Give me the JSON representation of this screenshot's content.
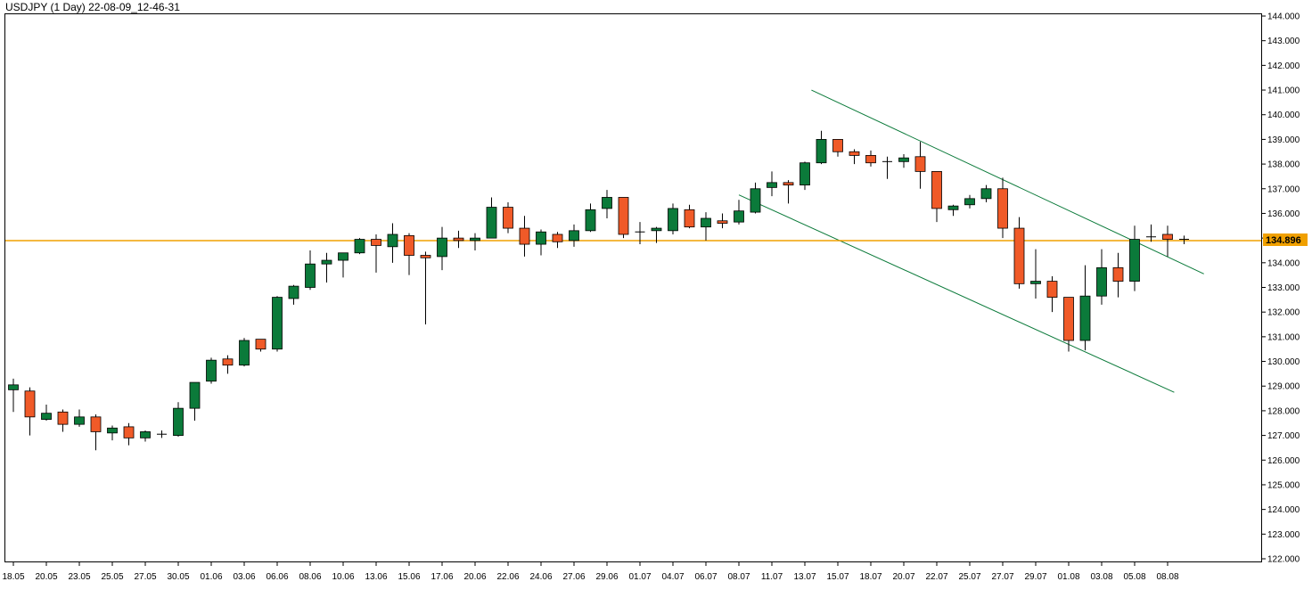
{
  "title": "USDJPY (1 Day) 22-08-09_12-46-31",
  "colors": {
    "up": "#0b7a3a",
    "down": "#f05a28",
    "wick": "#000000",
    "trendline": "#0b7a3a",
    "price_line": "#f0a000",
    "price_label_bg": "#f0a000",
    "frame": "#000000"
  },
  "chart_data": {
    "type": "candlestick",
    "symbol": "USDJPY",
    "timeframe": "1 Day",
    "ylim": [
      122.0,
      144.0
    ],
    "y_ticks": [
      122.0,
      123.0,
      124.0,
      125.0,
      126.0,
      127.0,
      128.0,
      129.0,
      130.0,
      131.0,
      132.0,
      133.0,
      134.0,
      135.0,
      136.0,
      137.0,
      138.0,
      139.0,
      140.0,
      141.0,
      142.0,
      143.0,
      144.0
    ],
    "y_tick_labels": [
      "122.000",
      "123.000",
      "124.000",
      "125.000",
      "126.000",
      "127.000",
      "128.000",
      "129.000",
      "130.000",
      "131.000",
      "132.000",
      "133.000",
      "134.000",
      "135.000",
      "136.000",
      "137.000",
      "138.000",
      "139.000",
      "140.000",
      "141.000",
      "142.000",
      "143.000",
      "144.000"
    ],
    "x_labels": [
      {
        "label": "18.05",
        "index": 0
      },
      {
        "label": "20.05",
        "index": 2
      },
      {
        "label": "23.05",
        "index": 4
      },
      {
        "label": "25.05",
        "index": 6
      },
      {
        "label": "27.05",
        "index": 8
      },
      {
        "label": "30.05",
        "index": 10
      },
      {
        "label": "01.06",
        "index": 12
      },
      {
        "label": "03.06",
        "index": 14
      },
      {
        "label": "06.06",
        "index": 16
      },
      {
        "label": "08.06",
        "index": 18
      },
      {
        "label": "10.06",
        "index": 20
      },
      {
        "label": "13.06",
        "index": 22
      },
      {
        "label": "15.06",
        "index": 24
      },
      {
        "label": "17.06",
        "index": 26
      },
      {
        "label": "20.06",
        "index": 28
      },
      {
        "label": "22.06",
        "index": 30
      },
      {
        "label": "24.06",
        "index": 32
      },
      {
        "label": "27.06",
        "index": 34
      },
      {
        "label": "29.06",
        "index": 36
      },
      {
        "label": "01.07",
        "index": 38
      },
      {
        "label": "04.07",
        "index": 40
      },
      {
        "label": "06.07",
        "index": 42
      },
      {
        "label": "08.07",
        "index": 44
      },
      {
        "label": "11.07",
        "index": 46
      },
      {
        "label": "13.07",
        "index": 48
      },
      {
        "label": "15.07",
        "index": 50
      },
      {
        "label": "18.07",
        "index": 52
      },
      {
        "label": "20.07",
        "index": 54
      },
      {
        "label": "22.07",
        "index": 56
      },
      {
        "label": "25.07",
        "index": 58
      },
      {
        "label": "27.07",
        "index": 60
      },
      {
        "label": "29.07",
        "index": 62
      },
      {
        "label": "01.08",
        "index": 64
      },
      {
        "label": "03.08",
        "index": 66
      },
      {
        "label": "05.08",
        "index": 68
      },
      {
        "label": "08.08",
        "index": 70
      }
    ],
    "candles": [
      {
        "o": 128.85,
        "h": 129.3,
        "l": 127.95,
        "c": 129.05
      },
      {
        "o": 128.8,
        "h": 128.95,
        "l": 127.0,
        "c": 127.75
      },
      {
        "o": 127.65,
        "h": 128.25,
        "l": 127.6,
        "c": 127.9
      },
      {
        "o": 127.95,
        "h": 128.05,
        "l": 127.15,
        "c": 127.45
      },
      {
        "o": 127.45,
        "h": 128.05,
        "l": 127.35,
        "c": 127.75
      },
      {
        "o": 127.75,
        "h": 127.85,
        "l": 126.4,
        "c": 127.15
      },
      {
        "o": 127.1,
        "h": 127.4,
        "l": 126.8,
        "c": 127.3
      },
      {
        "o": 127.35,
        "h": 127.5,
        "l": 126.6,
        "c": 126.9
      },
      {
        "o": 126.9,
        "h": 127.2,
        "l": 126.75,
        "c": 127.15
      },
      {
        "o": 127.05,
        "h": 127.2,
        "l": 126.9,
        "c": 127.05
      },
      {
        "o": 127.0,
        "h": 128.35,
        "l": 126.95,
        "c": 128.1
      },
      {
        "o": 128.1,
        "h": 129.15,
        "l": 127.6,
        "c": 129.15
      },
      {
        "o": 129.2,
        "h": 130.15,
        "l": 129.1,
        "c": 130.05
      },
      {
        "o": 130.1,
        "h": 130.25,
        "l": 129.5,
        "c": 129.85
      },
      {
        "o": 129.85,
        "h": 130.95,
        "l": 129.8,
        "c": 130.85
      },
      {
        "o": 130.9,
        "h": 130.9,
        "l": 130.4,
        "c": 130.5
      },
      {
        "o": 130.5,
        "h": 132.65,
        "l": 130.4,
        "c": 132.6
      },
      {
        "o": 132.55,
        "h": 133.1,
        "l": 132.3,
        "c": 133.05
      },
      {
        "o": 133.0,
        "h": 134.5,
        "l": 132.9,
        "c": 133.95
      },
      {
        "o": 133.95,
        "h": 134.4,
        "l": 133.2,
        "c": 134.1
      },
      {
        "o": 134.1,
        "h": 134.4,
        "l": 133.4,
        "c": 134.4
      },
      {
        "o": 134.4,
        "h": 135.0,
        "l": 134.35,
        "c": 134.95
      },
      {
        "o": 134.95,
        "h": 135.15,
        "l": 133.6,
        "c": 134.7
      },
      {
        "o": 134.65,
        "h": 135.6,
        "l": 134.0,
        "c": 135.15
      },
      {
        "o": 135.1,
        "h": 135.2,
        "l": 133.5,
        "c": 134.3
      },
      {
        "o": 134.3,
        "h": 134.45,
        "l": 131.5,
        "c": 134.2
      },
      {
        "o": 134.25,
        "h": 135.45,
        "l": 133.7,
        "c": 135.0
      },
      {
        "o": 135.0,
        "h": 135.3,
        "l": 134.6,
        "c": 134.9
      },
      {
        "o": 134.9,
        "h": 135.2,
        "l": 134.5,
        "c": 135.0
      },
      {
        "o": 135.0,
        "h": 136.65,
        "l": 135.0,
        "c": 136.25
      },
      {
        "o": 136.25,
        "h": 136.45,
        "l": 135.2,
        "c": 135.4
      },
      {
        "o": 135.4,
        "h": 135.9,
        "l": 134.25,
        "c": 134.75
      },
      {
        "o": 134.75,
        "h": 135.35,
        "l": 134.3,
        "c": 135.25
      },
      {
        "o": 135.15,
        "h": 135.25,
        "l": 134.6,
        "c": 134.85
      },
      {
        "o": 134.9,
        "h": 135.55,
        "l": 134.65,
        "c": 135.3
      },
      {
        "o": 135.3,
        "h": 136.4,
        "l": 135.25,
        "c": 136.15
      },
      {
        "o": 136.2,
        "h": 136.95,
        "l": 135.8,
        "c": 136.65
      },
      {
        "o": 136.65,
        "h": 136.65,
        "l": 135.0,
        "c": 135.15
      },
      {
        "o": 135.2,
        "h": 135.65,
        "l": 134.75,
        "c": 135.25
      },
      {
        "o": 135.3,
        "h": 135.45,
        "l": 134.8,
        "c": 135.4
      },
      {
        "o": 135.3,
        "h": 136.4,
        "l": 135.15,
        "c": 136.2
      },
      {
        "o": 136.15,
        "h": 136.35,
        "l": 135.4,
        "c": 135.45
      },
      {
        "o": 135.45,
        "h": 136.05,
        "l": 134.9,
        "c": 135.8
      },
      {
        "o": 135.7,
        "h": 136.0,
        "l": 135.4,
        "c": 135.6
      },
      {
        "o": 135.65,
        "h": 136.55,
        "l": 135.55,
        "c": 136.1
      },
      {
        "o": 136.05,
        "h": 137.25,
        "l": 136.0,
        "c": 137.0
      },
      {
        "o": 137.05,
        "h": 137.7,
        "l": 136.7,
        "c": 137.25
      },
      {
        "o": 137.25,
        "h": 137.35,
        "l": 136.4,
        "c": 137.15
      },
      {
        "o": 137.15,
        "h": 138.1,
        "l": 136.95,
        "c": 138.05
      },
      {
        "o": 138.05,
        "h": 139.35,
        "l": 138.0,
        "c": 139.0
      },
      {
        "o": 139.0,
        "h": 139.0,
        "l": 138.3,
        "c": 138.5
      },
      {
        "o": 138.5,
        "h": 138.6,
        "l": 138.0,
        "c": 138.35
      },
      {
        "o": 138.35,
        "h": 138.55,
        "l": 137.9,
        "c": 138.05
      },
      {
        "o": 138.1,
        "h": 138.3,
        "l": 137.4,
        "c": 138.05
      },
      {
        "o": 138.1,
        "h": 138.4,
        "l": 137.85,
        "c": 138.25
      },
      {
        "o": 138.3,
        "h": 138.9,
        "l": 137.0,
        "c": 137.7
      },
      {
        "o": 137.7,
        "h": 137.7,
        "l": 135.65,
        "c": 136.2
      },
      {
        "o": 136.15,
        "h": 136.35,
        "l": 135.9,
        "c": 136.3
      },
      {
        "o": 136.35,
        "h": 136.75,
        "l": 136.2,
        "c": 136.6
      },
      {
        "o": 136.6,
        "h": 137.15,
        "l": 136.45,
        "c": 137.0
      },
      {
        "o": 137.0,
        "h": 137.45,
        "l": 135.0,
        "c": 135.4
      },
      {
        "o": 135.4,
        "h": 135.85,
        "l": 132.95,
        "c": 133.15
      },
      {
        "o": 133.15,
        "h": 134.55,
        "l": 132.55,
        "c": 133.25
      },
      {
        "o": 133.25,
        "h": 133.45,
        "l": 132.0,
        "c": 132.6
      },
      {
        "o": 132.6,
        "h": 132.6,
        "l": 130.4,
        "c": 130.85
      },
      {
        "o": 130.85,
        "h": 133.9,
        "l": 130.45,
        "c": 132.65
      },
      {
        "o": 132.65,
        "h": 134.55,
        "l": 132.3,
        "c": 133.8
      },
      {
        "o": 133.8,
        "h": 134.4,
        "l": 132.6,
        "c": 133.25
      },
      {
        "o": 133.25,
        "h": 135.5,
        "l": 132.85,
        "c": 134.95
      },
      {
        "o": 135.0,
        "h": 135.55,
        "l": 134.85,
        "c": 135.05
      },
      {
        "o": 135.15,
        "h": 135.5,
        "l": 134.25,
        "c": 134.95
      },
      {
        "o": 134.95,
        "h": 135.1,
        "l": 134.75,
        "c": 134.9
      }
    ],
    "trendlines": [
      {
        "x1": 48.4,
        "y1": 141.0,
        "x2": 72.2,
        "y2": 133.55
      },
      {
        "x1": 44.0,
        "y1": 136.75,
        "x2": 70.4,
        "y2": 128.75
      }
    ],
    "current_price": 134.896,
    "current_price_label": "134.896",
    "grid": false,
    "legend": "none"
  }
}
